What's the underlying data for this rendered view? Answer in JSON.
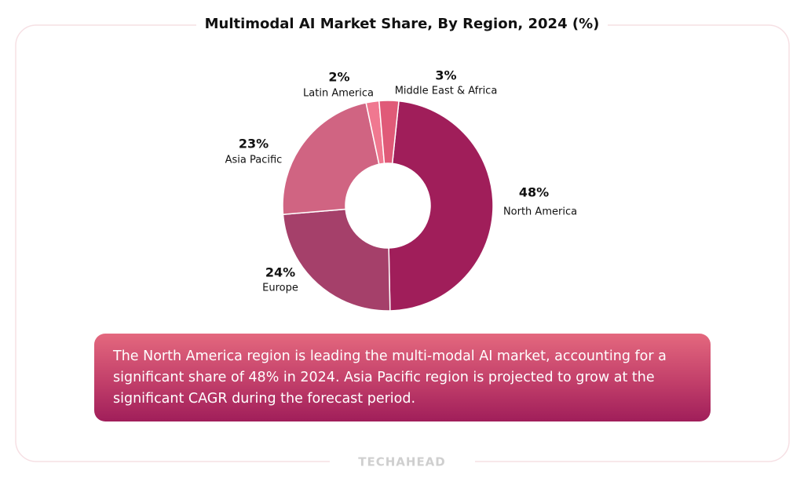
{
  "chart_data": {
    "type": "pie",
    "title": "Multimodal AI Market Share, By Region, 2024 (%)",
    "categories": [
      "North America",
      "Europe",
      "Asia Pacific",
      "Latin America",
      "Middle East & Africa"
    ],
    "values": [
      48,
      24,
      23,
      2,
      3
    ],
    "value_labels": [
      "48%",
      "24%",
      "23%",
      "2%",
      "3%"
    ],
    "colors": [
      "#a01e5a",
      "#a5406a",
      "#d06482",
      "#f07890",
      "#e05a78"
    ],
    "note": "The North America region is leading the multi-modal AI market, accounting for a significant share of 48% in 2024. Asia Pacific region is projected to grow at the significant CAGR during the forecast period.",
    "brand": "TECHAHEAD"
  }
}
